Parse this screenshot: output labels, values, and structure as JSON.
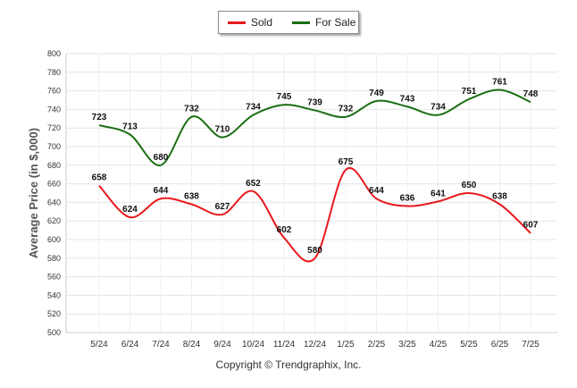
{
  "chart_data": {
    "type": "line",
    "categories": [
      "5/24",
      "6/24",
      "7/24",
      "8/24",
      "9/24",
      "10/24",
      "11/24",
      "12/24",
      "1/25",
      "2/25",
      "3/25",
      "4/25",
      "5/25",
      "6/25",
      "7/25"
    ],
    "series": [
      {
        "name": "Sold",
        "color": "#e8191d",
        "values": [
          658,
          624,
          644,
          638,
          627,
          652,
          602,
          580,
          675,
          644,
          636,
          641,
          650,
          638,
          607
        ]
      },
      {
        "name": "For Sale",
        "color": "#1a6e12",
        "values": [
          723,
          713,
          680,
          732,
          710,
          734,
          745,
          739,
          732,
          749,
          743,
          734,
          751,
          761,
          748
        ]
      }
    ],
    "ylabel": "Average Price (in $,000)",
    "xlabel": "",
    "ylim": [
      500,
      800
    ],
    "yticks": [
      500,
      520,
      540,
      560,
      580,
      600,
      620,
      640,
      660,
      680,
      700,
      720,
      740,
      760,
      780,
      800
    ],
    "grid": true,
    "legend_position": "top-center"
  },
  "footer": {
    "copyright": "Copyright © Trendgraphix, Inc."
  }
}
